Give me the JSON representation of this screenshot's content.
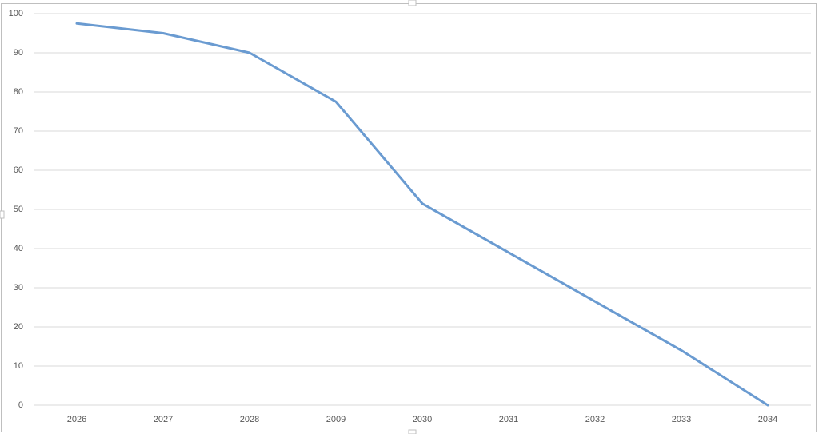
{
  "chart_data": {
    "type": "line",
    "categories": [
      "2026",
      "2027",
      "2028",
      "2009",
      "2030",
      "2031",
      "2032",
      "2033",
      "2034"
    ],
    "values": [
      97.5,
      95,
      90,
      77.5,
      51.5,
      39,
      26.5,
      14,
      0
    ],
    "color": "#6a9bd1",
    "ylim": [
      0,
      100
    ],
    "yticks": [
      0,
      10,
      20,
      30,
      40,
      50,
      60,
      70,
      80,
      90,
      100
    ],
    "grid": true
  }
}
